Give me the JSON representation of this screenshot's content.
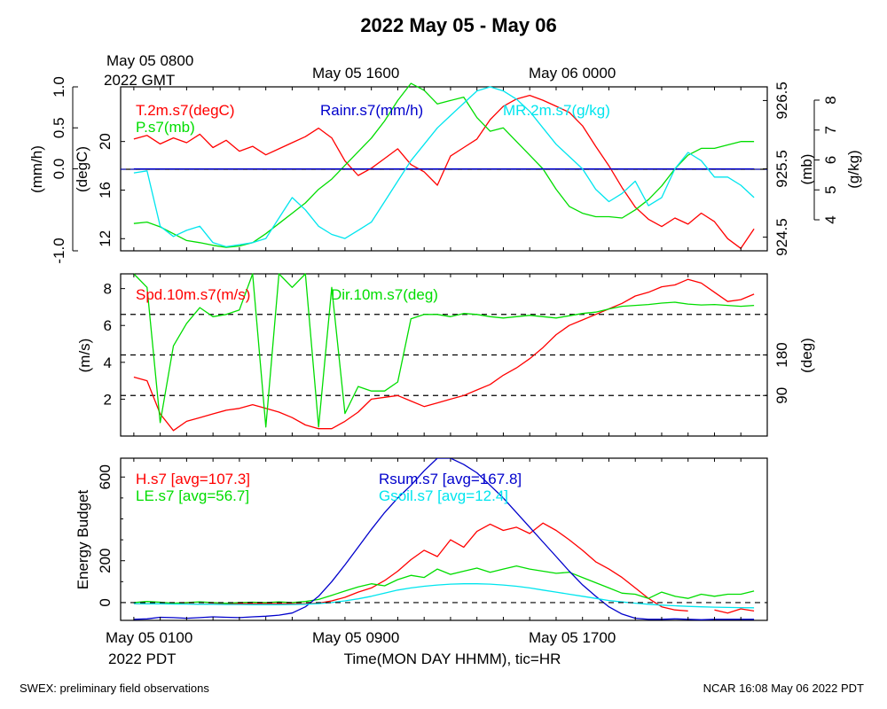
{
  "title": "2022 May 05 - May 06",
  "footer_left": "SWEX: preliminary field observations",
  "footer_right": "NCAR 16:08 May 06 2022 PDT",
  "top_time_labels": [
    {
      "line1": "May 05 0800",
      "line2": "2022 GMT"
    },
    {
      "line1": "May 05 1600",
      "line2": ""
    },
    {
      "line1": "May 06 0000",
      "line2": ""
    }
  ],
  "bottom_time_labels": [
    {
      "line1": "May 05 0100",
      "line2": "2022 PDT"
    },
    {
      "line1": "May 05 0900",
      "line2": ""
    },
    {
      "line1": "May 05 1700",
      "line2": ""
    }
  ],
  "xlabel": "Time(MON DAY HHMM), tic=HR",
  "colors": {
    "red": "#ff0000",
    "green": "#00dd00",
    "blue": "#0000cc",
    "cyan": "#00e5ee",
    "black": "#000000"
  },
  "chart_data": [
    {
      "type": "line",
      "x_hours_pdt": [
        0,
        0.5,
        1,
        1.5,
        2,
        2.5,
        3,
        3.5,
        4,
        4.5,
        5,
        5.5,
        6,
        6.5,
        7,
        7.5,
        8,
        8.5,
        9,
        9.5,
        10,
        10.5,
        11,
        11.5,
        12,
        12.5,
        13,
        13.5,
        14,
        14.5,
        15,
        15.5,
        16,
        16.5,
        17,
        17.5,
        18,
        18.5,
        19,
        19.5,
        20,
        20.5,
        21,
        21.5,
        22,
        22.5,
        23,
        23.5
      ],
      "y_axes": [
        {
          "label": "(mm/h)",
          "ticks": [
            "-1.0",
            "0.0",
            "0.5",
            "1.0"
          ],
          "ylim": [
            -1.0,
            1.0
          ]
        },
        {
          "label": "(degC)",
          "ticks": [
            "12",
            "16",
            "20"
          ],
          "ylim": [
            11,
            24.5
          ]
        },
        {
          "label": "(mb)",
          "ticks": [
            "924.5",
            "925.5",
            "926.5"
          ],
          "ylim": [
            924.3,
            926.7
          ]
        },
        {
          "label": "(g/kg)",
          "ticks": [
            "4",
            "5",
            "6",
            "7",
            "8"
          ],
          "ylim": [
            4,
            8
          ]
        }
      ],
      "series": [
        {
          "name": "T.2m.s7(degC)",
          "axis": 1,
          "values": [
            20.2,
            20.5,
            19.8,
            20.3,
            19.9,
            20.6,
            19.5,
            20.1,
            19.2,
            19.6,
            18.9,
            19.4,
            19.9,
            20.4,
            21.1,
            20.3,
            18.4,
            17.2,
            17.8,
            18.6,
            19.4,
            18.1,
            17.5,
            16.4,
            18.8,
            19.5,
            20.2,
            21.8,
            22.9,
            23.5,
            23.8,
            23.4,
            22.9,
            22.4,
            21.3,
            19.6,
            18.0,
            16.2,
            14.6,
            13.6,
            13.0,
            13.7,
            13.2,
            14.1,
            13.4,
            12.0,
            11.2,
            12.8
          ]
        },
        {
          "name": "P.s7(mb)",
          "axis": 2,
          "values": [
            924.7,
            924.72,
            924.65,
            924.55,
            924.45,
            924.42,
            924.38,
            924.35,
            924.37,
            924.42,
            924.55,
            924.7,
            924.85,
            925.0,
            925.2,
            925.35,
            925.55,
            925.75,
            925.95,
            926.2,
            926.5,
            926.75,
            926.65,
            926.45,
            926.5,
            926.55,
            926.25,
            926.05,
            926.1,
            925.9,
            925.7,
            925.5,
            925.2,
            924.95,
            924.85,
            924.8,
            924.8,
            924.78,
            924.9,
            925.05,
            925.25,
            925.5,
            925.7,
            925.8,
            925.8,
            925.85,
            925.9,
            925.9
          ]
        },
        {
          "name": "Rainr.s7(mm/h)",
          "axis": 0,
          "values": [
            0,
            0,
            0,
            0,
            0,
            0,
            0,
            0,
            0,
            0,
            0,
            0,
            0,
            0,
            0,
            0,
            0,
            0,
            0,
            0,
            0,
            0,
            0,
            0,
            0,
            0,
            0,
            0,
            0,
            0,
            0,
            0,
            0,
            0,
            0,
            0,
            0,
            0,
            0,
            0,
            0,
            0,
            0,
            0,
            0,
            0,
            0,
            0
          ]
        },
        {
          "name": "MR.2m.s7(g/kg)",
          "axis": 3,
          "values": [
            5.9,
            5.95,
            4.6,
            4.35,
            4.5,
            4.6,
            4.2,
            4.1,
            4.15,
            4.2,
            4.3,
            4.8,
            5.3,
            5.0,
            4.6,
            4.4,
            4.3,
            4.5,
            4.7,
            5.2,
            5.7,
            6.2,
            6.6,
            7.0,
            7.3,
            7.6,
            7.9,
            8.0,
            7.9,
            7.7,
            7.4,
            7.0,
            6.6,
            6.3,
            6.0,
            5.5,
            5.2,
            5.4,
            5.7,
            5.1,
            5.3,
            6.0,
            6.4,
            6.2,
            5.8,
            5.8,
            5.6,
            5.3
          ]
        }
      ]
    },
    {
      "type": "line",
      "x_hours_pdt": [
        0,
        0.5,
        1,
        1.5,
        2,
        2.5,
        3,
        3.5,
        4,
        4.5,
        5,
        5.5,
        6,
        6.5,
        7,
        7.5,
        8,
        8.5,
        9,
        9.5,
        10,
        10.5,
        11,
        11.5,
        12,
        12.5,
        13,
        13.5,
        14,
        14.5,
        15,
        15.5,
        16,
        16.5,
        17,
        17.5,
        18,
        18.5,
        19,
        19.5,
        20,
        20.5,
        21,
        21.5,
        22,
        22.5,
        23,
        23.5
      ],
      "y_axes": [
        {
          "label": "(m/s)",
          "ticks": [
            "2",
            "4",
            "6",
            "8"
          ],
          "ylim": [
            0,
            8.8
          ]
        },
        {
          "label": "(deg)",
          "ticks": [
            "90",
            "180"
          ],
          "ylim": [
            0,
            360
          ]
        }
      ],
      "reference_lines_deg": [
        90,
        180,
        270
      ],
      "series": [
        {
          "name": "Spd.10m.s7(m/s)",
          "axis": 0,
          "values": [
            3.2,
            3.0,
            1.2,
            0.3,
            0.8,
            1.0,
            1.2,
            1.4,
            1.5,
            1.7,
            1.5,
            1.3,
            1.0,
            0.6,
            0.4,
            0.4,
            0.8,
            1.3,
            2.0,
            2.1,
            2.2,
            1.9,
            1.6,
            1.8,
            2.0,
            2.2,
            2.5,
            2.8,
            3.3,
            3.7,
            4.2,
            4.8,
            5.5,
            6.0,
            6.3,
            6.6,
            6.9,
            7.2,
            7.6,
            7.8,
            8.1,
            8.2,
            8.5,
            8.3,
            7.8,
            7.3,
            7.4,
            7.7
          ]
        },
        {
          "name": "Dir.10m.s7(deg)",
          "axis": 1,
          "values": [
            360,
            330,
            30,
            200,
            250,
            285,
            265,
            270,
            280,
            360,
            20,
            360,
            330,
            360,
            20,
            330,
            50,
            110,
            100,
            100,
            120,
            260,
            270,
            270,
            265,
            272,
            270,
            265,
            262,
            265,
            268,
            265,
            262,
            267,
            272,
            275,
            282,
            288,
            290,
            292,
            295,
            297,
            293,
            291,
            292,
            290,
            288,
            290
          ]
        }
      ]
    },
    {
      "type": "line",
      "x_hours_pdt": [
        0,
        0.5,
        1,
        1.5,
        2,
        2.5,
        3,
        3.5,
        4,
        4.5,
        5,
        5.5,
        6,
        6.5,
        7,
        7.5,
        8,
        8.5,
        9,
        9.5,
        10,
        10.5,
        11,
        11.5,
        12,
        12.5,
        13,
        13.5,
        14,
        14.5,
        15,
        15.5,
        16,
        16.5,
        17,
        17.5,
        18,
        18.5,
        19,
        19.5,
        20,
        20.5,
        21,
        21.5,
        22,
        22.5,
        23,
        23.5
      ],
      "ylabel": "Energy Budget",
      "y_ticks": [
        "0",
        "200",
        "600"
      ],
      "ylim": [
        -85,
        690
      ],
      "zero_line": true,
      "series": [
        {
          "name": "H.s7 [avg=107.3]",
          "values": [
            -5,
            -5,
            -6,
            -6,
            -6,
            -7,
            -6,
            -5,
            -5,
            -5,
            -4,
            -5,
            -6,
            -6,
            -3,
            8,
            25,
            50,
            70,
            105,
            150,
            205,
            250,
            220,
            300,
            265,
            340,
            375,
            345,
            360,
            330,
            380,
            345,
            300,
            250,
            195,
            160,
            120,
            70,
            20,
            -20,
            -35,
            -40,
            null,
            -35,
            -50,
            -30,
            -40
          ]
        },
        {
          "name": "LE.s7 [avg=56.7]",
          "values": [
            0,
            5,
            2,
            -3,
            0,
            3,
            0,
            -3,
            0,
            2,
            0,
            3,
            0,
            5,
            15,
            35,
            55,
            75,
            90,
            80,
            110,
            130,
            120,
            160,
            135,
            150,
            165,
            145,
            160,
            175,
            160,
            150,
            140,
            145,
            120,
            95,
            70,
            45,
            40,
            20,
            50,
            30,
            20,
            40,
            30,
            40,
            40,
            55
          ]
        },
        {
          "name": "Rsum.s7 [avg=167.8]",
          "values": [
            -80,
            -78,
            -70,
            -72,
            -75,
            -72,
            -68,
            -70,
            -72,
            -68,
            -65,
            -60,
            -50,
            -20,
            30,
            100,
            180,
            265,
            350,
            430,
            500,
            560,
            630,
            690,
            690,
            660,
            620,
            560,
            500,
            430,
            360,
            290,
            220,
            150,
            85,
            30,
            -20,
            -55,
            -75,
            -80,
            -80,
            -78,
            -80,
            -82,
            -80,
            -80,
            -80,
            -80
          ]
        },
        {
          "name": "Gsoil.s7 [avg=12.4]",
          "values": [
            -5,
            -6,
            -6,
            -7,
            -7,
            -8,
            -8,
            -9,
            -9,
            -10,
            -10,
            -10,
            -9,
            -8,
            -5,
            0,
            8,
            18,
            30,
            45,
            60,
            70,
            78,
            84,
            88,
            90,
            90,
            88,
            84,
            78,
            70,
            60,
            50,
            40,
            30,
            20,
            10,
            3,
            -3,
            -8,
            -12,
            -15,
            -18,
            -20,
            -22,
            -23,
            -24,
            -25
          ]
        }
      ]
    }
  ]
}
